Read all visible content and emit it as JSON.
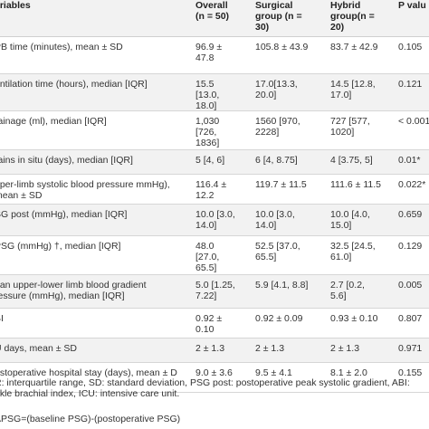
{
  "table": {
    "headers": [
      "ariables",
      "Overall (n = 50)",
      "Surgical group (n = 30)",
      "Hybrid group(n = 20)",
      "P valu"
    ],
    "rows": [
      [
        "PB time (minutes), mean ± SD",
        "96.9 ± 47.8",
        "105.8 ± 43.9",
        "83.7 ± 42.9",
        "0.105"
      ],
      [
        "entilation time (hours), median [IQR]",
        "15.5 [13.0, 18.0]",
        "17.0[13.3, 20.0]",
        "14.5 [12.8, 17.0]",
        "0.121"
      ],
      [
        "rainage (ml), median [IQR]",
        "1,030 [726, 1836]",
        "1560 [970, 2228]",
        "727 [577, 1020]",
        "< 0.001*"
      ],
      [
        "rains in situ (days), median [IQR]",
        "5 [4, 6]",
        "6 [4, 8.75]",
        "4 [3.75, 5]",
        "0.01*"
      ],
      [
        "pper-limb systolic blood pressure mmHg), mean ± SD",
        "116.4 ± 12.2",
        "119.7 ± 11.5",
        "111.6 ± 11.5",
        "0.022*"
      ],
      [
        "SG post (mmHg), median [IQR]",
        "10.0 [3.0, 14.0]",
        "10.0 [3.0, 14.0]",
        "10.0 [4.0, 15.0]",
        "0.659"
      ],
      [
        "PSG (mmHg) †, median [IQR]",
        "48.0 [27.0, 65.5]",
        "52.5 [37.0, 65.5]",
        "32.5 [24.5, 61.0]",
        "0.129"
      ],
      [
        "ean upper-lower limb blood gradient ressure (mmHg), median [IQR]",
        "5.0 [1.25, 7.22]",
        "5.9 [4.1, 8.8]",
        "2.7 [0.2, 5.6]",
        "0.005"
      ],
      [
        "BI",
        "0.92 ± 0.10",
        "0.92 ± 0.09",
        "0.93 ± 0.10",
        "0.807"
      ],
      [
        "U days, mean ± SD",
        "2 ± 1.3",
        "2 ± 1.3",
        "2 ± 1.3",
        "0.971"
      ],
      [
        "ostoperative hospital stay (days), mean ± D",
        "9.0 ± 3.6",
        "9.5 ± 4.1",
        "8.1 ± 2.0",
        "0.155"
      ]
    ]
  },
  "footnote_1": "R: interquartile range, SD: standard deviation, PSG post: postoperative peak systolic gradient, ABI: nkle brachial index, ICU: intensive care unit.",
  "footnote_2": "ΔPSG=(baseline PSG)-(postoperative PSG)"
}
